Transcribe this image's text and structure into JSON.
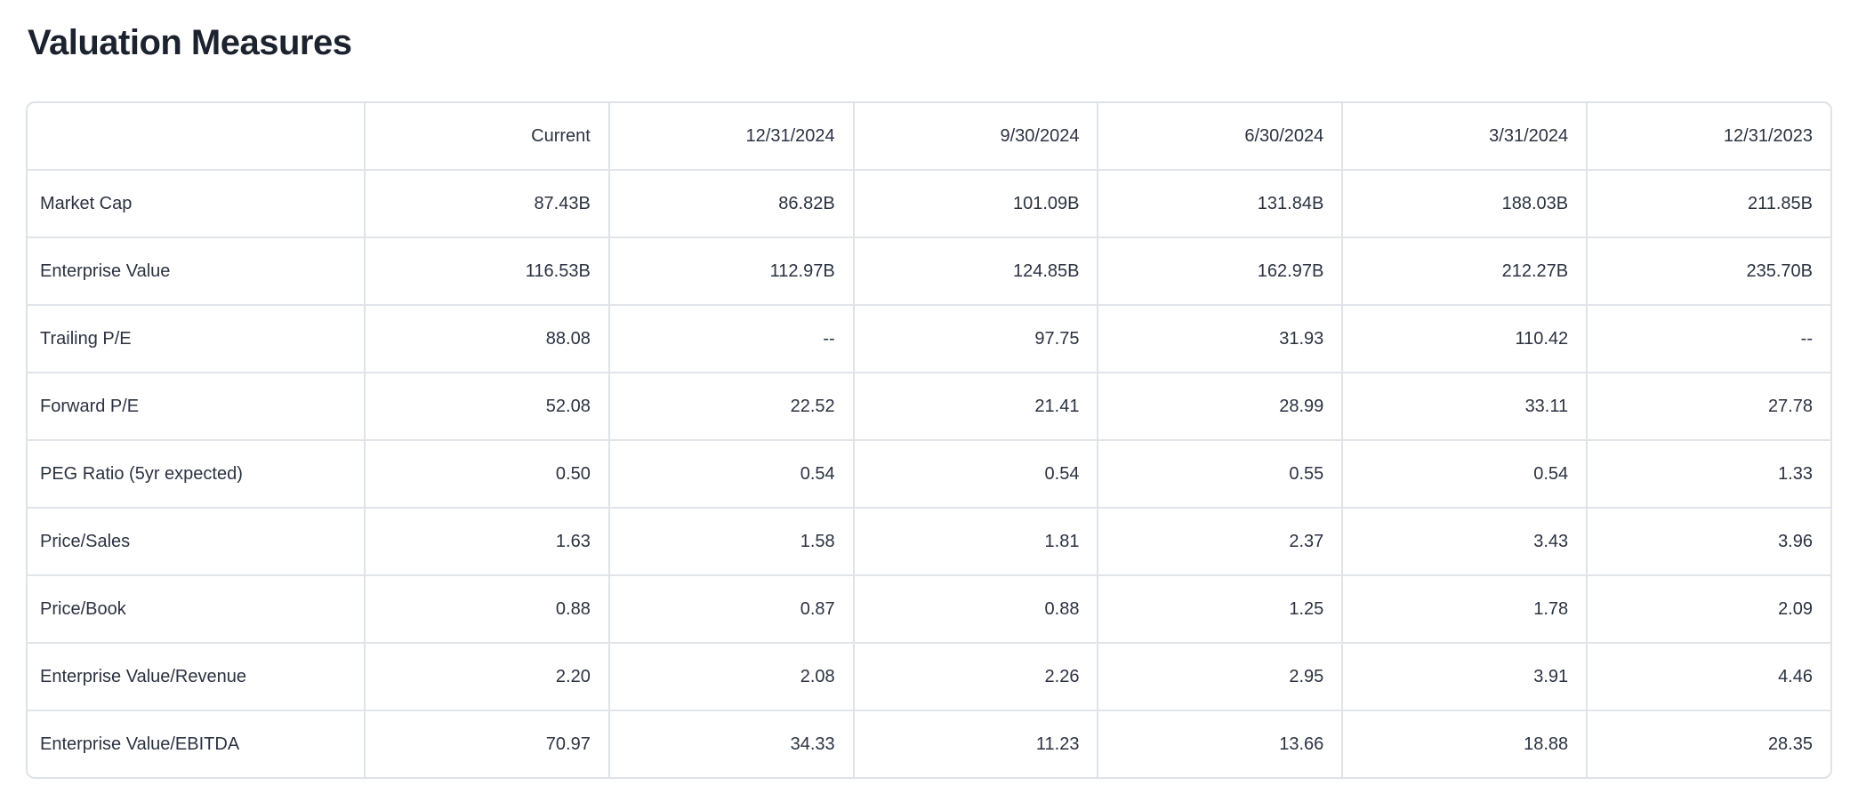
{
  "page": {
    "title": "Valuation Measures"
  },
  "colors": {
    "table_border": "#dfe3e8",
    "row_separator": "#e1e5e9",
    "text": "#2b3240",
    "title_text": "#1d232e",
    "background": "#ffffff"
  },
  "table": {
    "columns": [
      "",
      "Current",
      "12/31/2024",
      "9/30/2024",
      "6/30/2024",
      "3/31/2024",
      "12/31/2023"
    ],
    "rows": [
      {
        "label": "Market Cap",
        "values": [
          "87.43B",
          "86.82B",
          "101.09B",
          "131.84B",
          "188.03B",
          "211.85B"
        ]
      },
      {
        "label": "Enterprise Value",
        "values": [
          "116.53B",
          "112.97B",
          "124.85B",
          "162.97B",
          "212.27B",
          "235.70B"
        ]
      },
      {
        "label": "Trailing P/E",
        "values": [
          "88.08",
          "--",
          "97.75",
          "31.93",
          "110.42",
          "--"
        ]
      },
      {
        "label": "Forward P/E",
        "values": [
          "52.08",
          "22.52",
          "21.41",
          "28.99",
          "33.11",
          "27.78"
        ]
      },
      {
        "label": "PEG Ratio (5yr expected)",
        "values": [
          "0.50",
          "0.54",
          "0.54",
          "0.55",
          "0.54",
          "1.33"
        ]
      },
      {
        "label": "Price/Sales",
        "values": [
          "1.63",
          "1.58",
          "1.81",
          "2.37",
          "3.43",
          "3.96"
        ]
      },
      {
        "label": "Price/Book",
        "values": [
          "0.88",
          "0.87",
          "0.88",
          "1.25",
          "1.78",
          "2.09"
        ]
      },
      {
        "label": "Enterprise Value/Revenue",
        "values": [
          "2.20",
          "2.08",
          "2.26",
          "2.95",
          "3.91",
          "4.46"
        ]
      },
      {
        "label": "Enterprise Value/EBITDA",
        "values": [
          "70.97",
          "34.33",
          "11.23",
          "13.66",
          "18.88",
          "28.35"
        ]
      }
    ]
  }
}
